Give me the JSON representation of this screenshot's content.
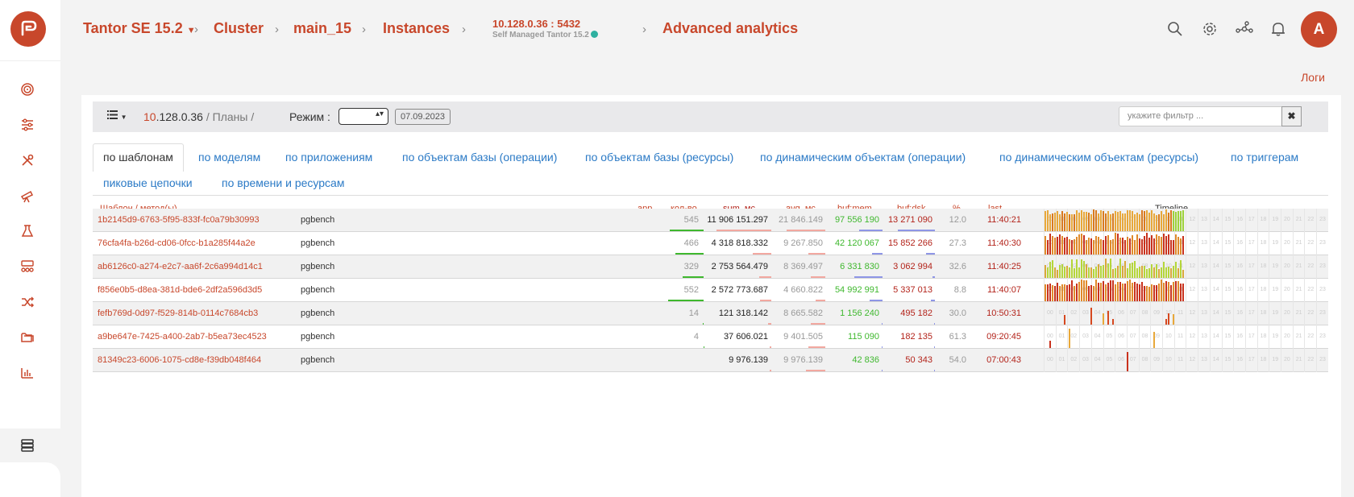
{
  "header": {
    "breadcrumbs": [
      "Tantor SE 15.2",
      "Cluster",
      "main_15",
      "Instances"
    ],
    "instance_address": "10.128.0.36 : 5432",
    "instance_subtitle": "Self Managed Tantor 15.2",
    "page_title": "Advanced analytics",
    "avatar_letter": "A",
    "logs_link": "Логи"
  },
  "sidebar": {
    "icons": [
      "target-icon",
      "sliders-icon",
      "tools-icon",
      "telescope-icon",
      "flask-icon",
      "nodes-icon",
      "shuffle-icon",
      "folder-icon",
      "bar-chart-icon",
      "gear-icon",
      "database-icon"
    ]
  },
  "toolbar": {
    "path_highlight": "10",
    "path_rest": ".128.0.36",
    "path_sep": "/",
    "path_plans": "Планы /",
    "mode_label": "Режим :",
    "date": "07.09.2023",
    "filter_placeholder": "укажите фильтр ...",
    "clear_label": "✖"
  },
  "tabs": [
    "по шаблонам",
    "по моделям",
    "по приложениям",
    "по объектам базы (операции)",
    "по объектам базы (ресурсы)",
    "по динамическим объектам (операции)",
    "по динамическим объектам (ресурсы)",
    "по триггерам",
    "пиковые цепочки",
    "по времени и ресурсам"
  ],
  "columns": {
    "template": "Шаблон / метод(ы)",
    "app": "app",
    "count": "кол-во",
    "sum": "sum, мс",
    "avg": "avg, мс",
    "bufmem": "buf:mem",
    "bufdsk": "buf:dsk",
    "pct": "%",
    "last": "last",
    "timeline": "Timeline"
  },
  "rows": [
    {
      "id": "1b2145d9-6763-5f95-833f-fc0a79b30993",
      "app": "pgbench",
      "count": "545",
      "sum": "11 906 151.297",
      "avg": "21 846.149",
      "bufmem": "97 556 190",
      "bufdsk": "13 271 090",
      "pct": "12.0",
      "last": "11:40:21",
      "fill": 0.62,
      "style": "dense-mix"
    },
    {
      "id": "76cfa4fa-b26d-cd06-0fcc-b1a285f44a2e",
      "app": "pgbench",
      "count": "466",
      "sum": "4 318 818.332",
      "avg": "9 267.850",
      "bufmem": "42 120 067",
      "bufdsk": "15 852 266",
      "pct": "27.3",
      "last": "11:40:30",
      "fill": 0.5,
      "style": "dense-red"
    },
    {
      "id": "ab6126c0-a274-e2c7-aa6f-2c6a994d14c1",
      "app": "pgbench",
      "count": "329",
      "sum": "2 753 564.479",
      "avg": "8 369.497",
      "bufmem": "6 331 830",
      "bufdsk": "3 062 994",
      "pct": "32.6",
      "last": "11:40:25",
      "fill": 0.5,
      "style": "dense-green"
    },
    {
      "id": "f856e0b5-d8ea-381d-bde6-2df2a596d3d5",
      "app": "pgbench",
      "count": "552",
      "sum": "2 572 773.687",
      "avg": "4 660.822",
      "bufmem": "54 992 991",
      "bufdsk": "5 337 013",
      "pct": "8.8",
      "last": "11:40:07",
      "fill": 0.5,
      "style": "dense-red"
    },
    {
      "id": "fefb769d-0d97-f529-814b-0114c7684cb3",
      "app": "pgbench",
      "count": "14",
      "sum": "121 318.142",
      "avg": "8 665.582",
      "bufmem": "1 156 240",
      "bufdsk": "495 182",
      "pct": "30.0",
      "last": "10:50:31",
      "fill": 0.5,
      "style": "sparse"
    },
    {
      "id": "a9be647e-7425-a400-2ab7-b5ea73ec4523",
      "app": "pgbench",
      "count": "4",
      "sum": "37 606.021",
      "avg": "9 401.505",
      "bufmem": "115 090",
      "bufdsk": "182 135",
      "pct": "61.3",
      "last": "09:20:45",
      "fill": 0.4,
      "style": "sparse2"
    },
    {
      "id": "81349c23-6006-1075-cd8e-f39db048f464",
      "app": "pgbench",
      "count": "",
      "sum": "9 976.139",
      "avg": "9 976.139",
      "bufmem": "42 836",
      "bufdsk": "50 343",
      "pct": "54.0",
      "last": "07:00:43",
      "fill": 0.3,
      "style": "single"
    }
  ],
  "timeline_hours": [
    "00",
    "01",
    "02",
    "03",
    "04",
    "05",
    "06",
    "07",
    "08",
    "09",
    "10",
    "11",
    "12",
    "13",
    "14",
    "15",
    "16",
    "17",
    "18",
    "19",
    "20",
    "21",
    "22",
    "23"
  ],
  "colors": {
    "accent": "#c8472b",
    "link": "#2b7ac6",
    "green": "#3fb82e",
    "dark_red": "#b3231a"
  }
}
